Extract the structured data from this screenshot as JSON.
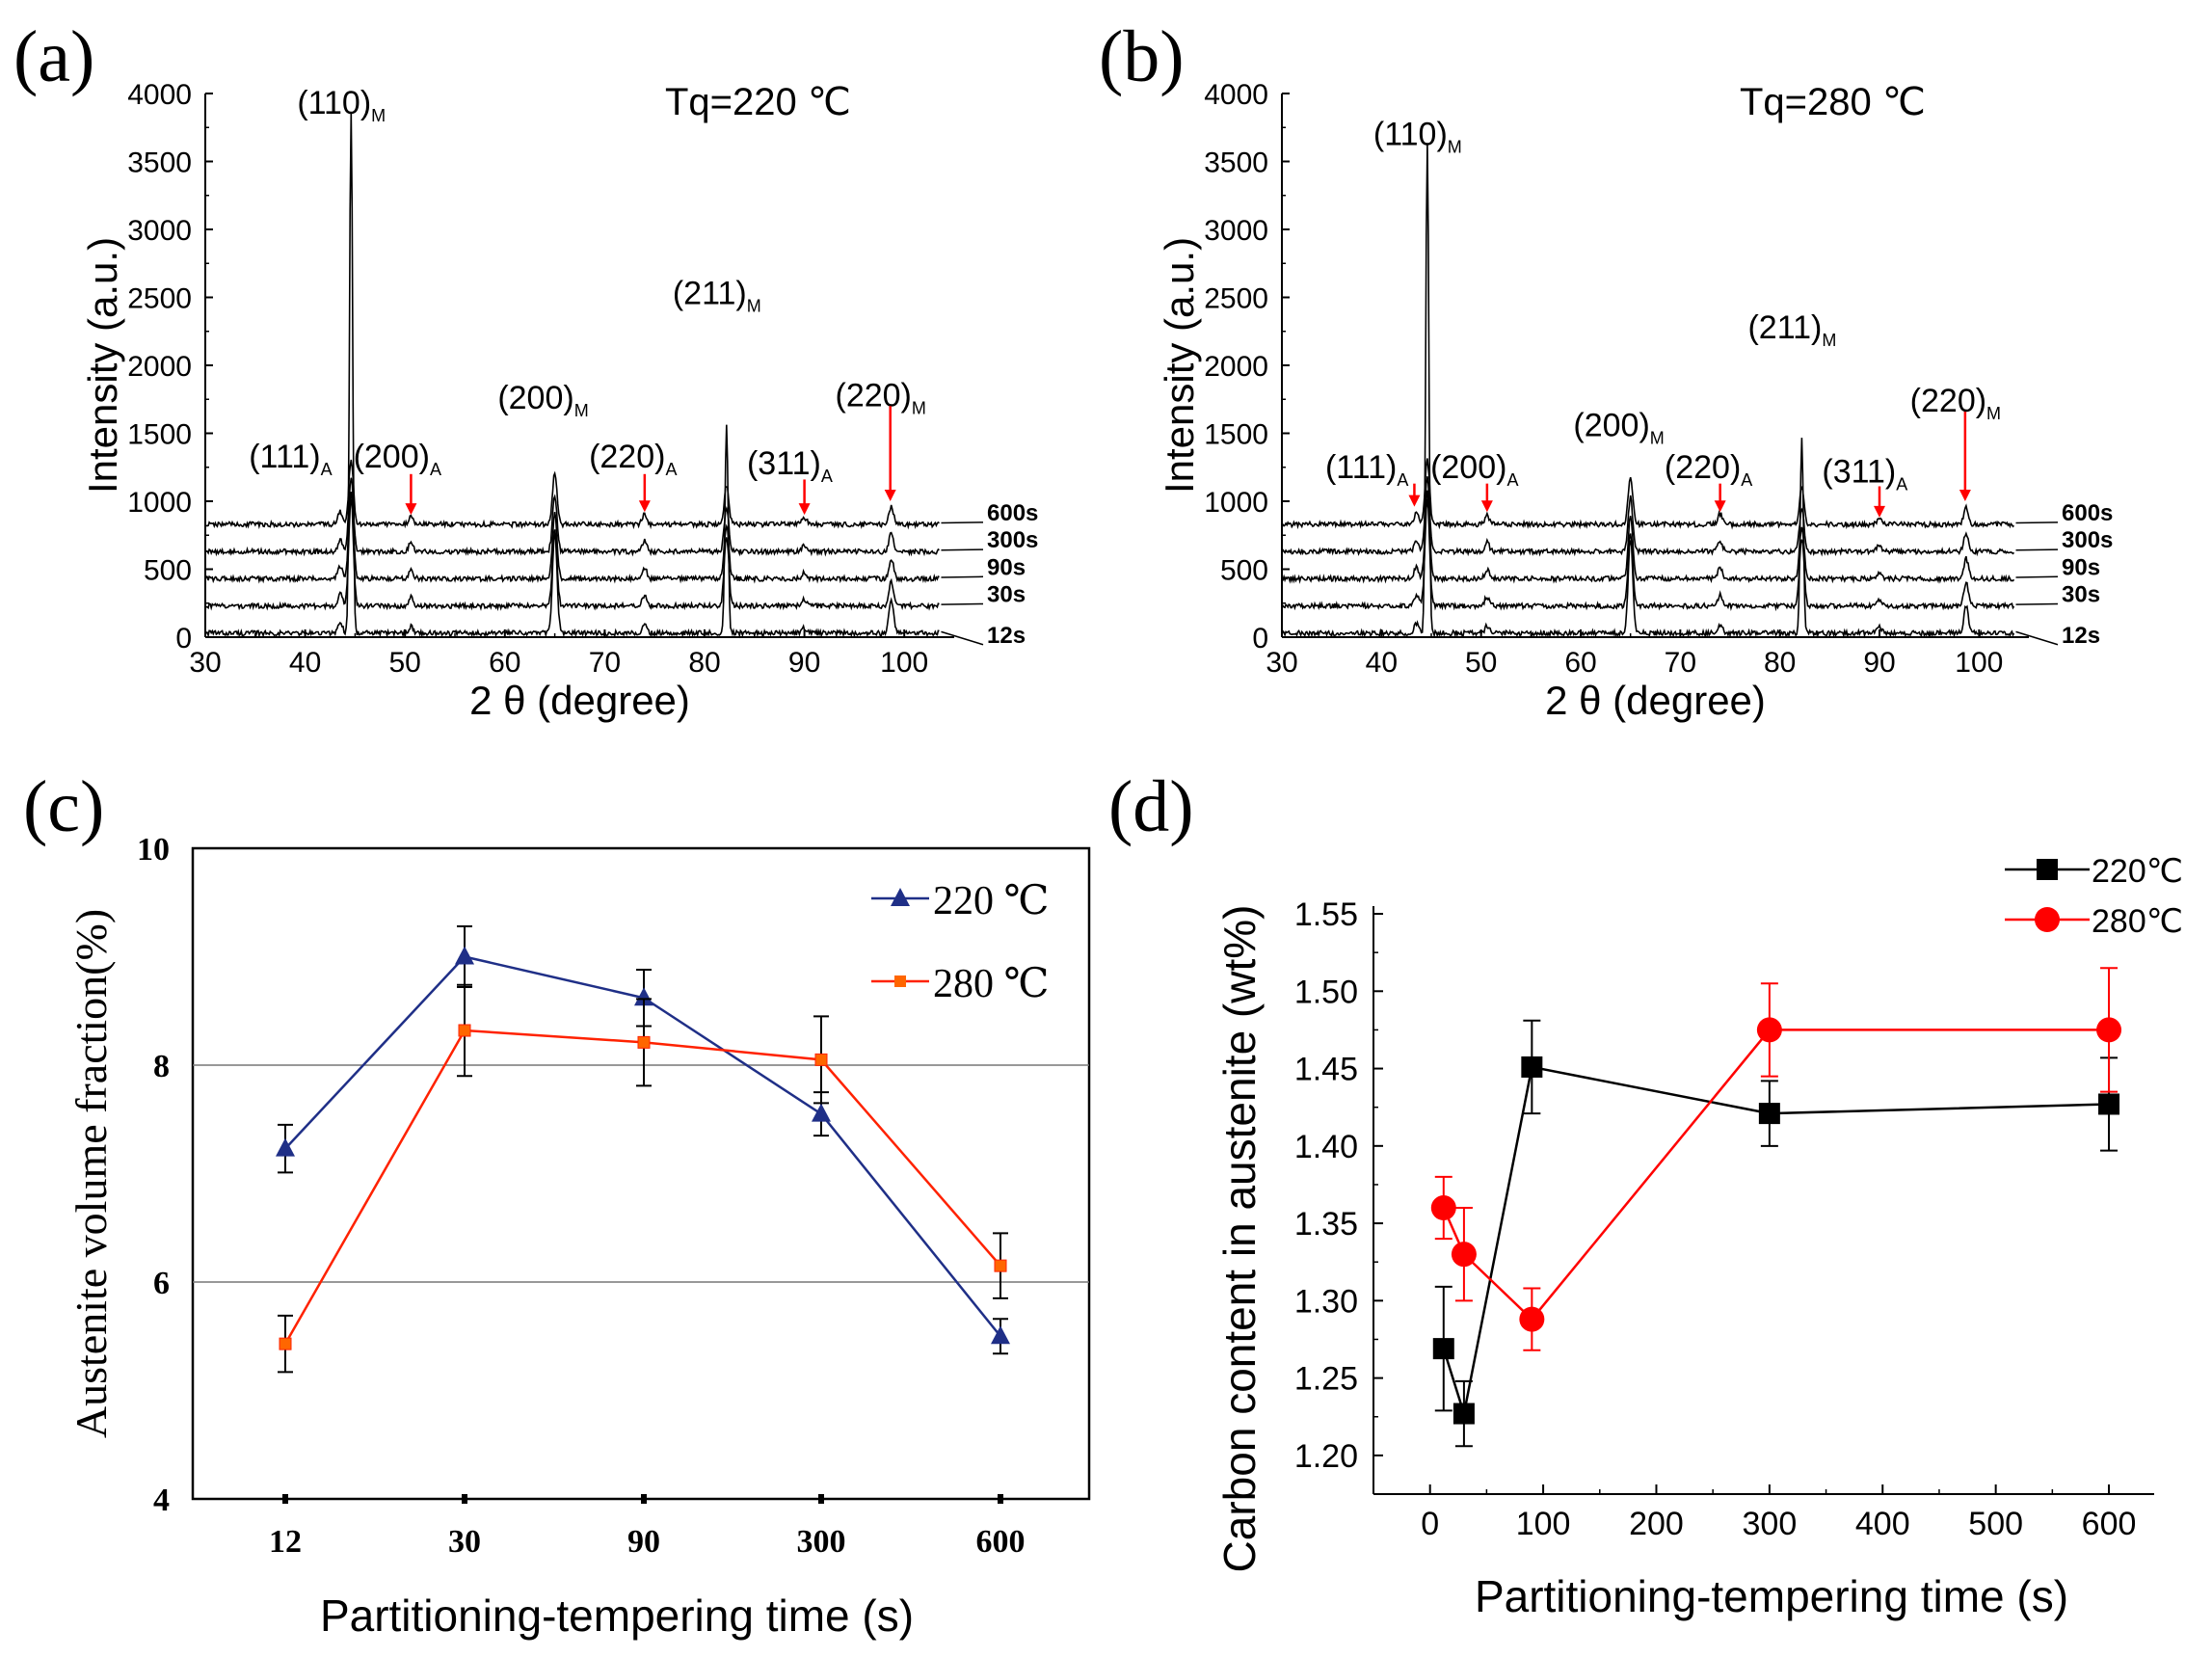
{
  "colors": {
    "black": "#000000",
    "red": "#ff0000",
    "navy": "#1f2f87",
    "orange_line": "#ff2200",
    "orange_marker": "#ff6600",
    "grid": "#777777"
  },
  "chart_data": [
    {
      "panel": "(a)",
      "type": "line",
      "annotation": "Tq=220 ℃",
      "xlabel": "2 θ (degree)",
      "ylabel": "Intensity (a.u.)",
      "xlim": [
        30,
        105
      ],
      "ylim": [
        0,
        4000
      ],
      "xticks": [
        "30",
        "40",
        "50",
        "60",
        "70",
        "80",
        "90",
        "100"
      ],
      "yticks": [
        "0",
        "500",
        "1000",
        "1500",
        "2000",
        "2500",
        "3000",
        "3500",
        "4000"
      ],
      "series": [
        {
          "name": "12s",
          "offset": 0,
          "peaks": [
            [
              43.5,
              80
            ],
            [
              44.6,
              3850
            ],
            [
              50.6,
              50
            ],
            [
              65.0,
              760
            ],
            [
              74.0,
              60
            ],
            [
              82.2,
              1550
            ],
            [
              90.0,
              40
            ],
            [
              98.7,
              250
            ]
          ]
        },
        {
          "name": "30s",
          "offset": 200,
          "peaks": [
            [
              43.5,
              90
            ],
            [
              44.6,
              800
            ],
            [
              50.6,
              70
            ],
            [
              65.0,
              560
            ],
            [
              74.0,
              80
            ],
            [
              82.2,
              520
            ],
            [
              90.0,
              50
            ],
            [
              98.7,
              180
            ]
          ]
        },
        {
          "name": "90s",
          "offset": 400,
          "peaks": [
            [
              43.5,
              90
            ],
            [
              44.6,
              650
            ],
            [
              50.6,
              70
            ],
            [
              65.0,
              480
            ],
            [
              74.0,
              80
            ],
            [
              82.2,
              400
            ],
            [
              90.0,
              50
            ],
            [
              98.7,
              150
            ]
          ]
        },
        {
          "name": "300s",
          "offset": 600,
          "peaks": [
            [
              43.5,
              90
            ],
            [
              44.6,
              550
            ],
            [
              50.6,
              70
            ],
            [
              65.0,
              420
            ],
            [
              74.0,
              80
            ],
            [
              82.2,
              330
            ],
            [
              90.0,
              50
            ],
            [
              98.7,
              140
            ]
          ]
        },
        {
          "name": "600s",
          "offset": 800,
          "peaks": [
            [
              43.5,
              90
            ],
            [
              44.6,
              480
            ],
            [
              50.6,
              70
            ],
            [
              65.0,
              380
            ],
            [
              74.0,
              80
            ],
            [
              82.2,
              290
            ],
            [
              90.0,
              50
            ],
            [
              98.7,
              130
            ]
          ]
        }
      ],
      "peak_labels": [
        {
          "text": "(110)",
          "sub": "M",
          "x": 44.6,
          "y": 3850
        },
        {
          "text": "(111)",
          "sub": "A",
          "x": 39.5,
          "y": 1250
        },
        {
          "text": "(200)",
          "sub": "A",
          "x": 50.2,
          "y": 1250
        },
        {
          "text": "(200)",
          "sub": "M",
          "x": 64.8,
          "y": 1680
        },
        {
          "text": "(220)",
          "sub": "A",
          "x": 73.8,
          "y": 1250
        },
        {
          "text": "(211)",
          "sub": "M",
          "x": 82.2,
          "y": 2450
        },
        {
          "text": "(311)",
          "sub": "A",
          "x": 89.5,
          "y": 1200
        },
        {
          "text": "(220)",
          "sub": "M",
          "x": 98.6,
          "y": 1700
        }
      ],
      "arrows": [
        [
          50.6,
          1200,
          900
        ],
        [
          74.0,
          1200,
          920
        ],
        [
          90.0,
          1160,
          900
        ],
        [
          98.6,
          1700,
          1000
        ]
      ]
    },
    {
      "panel": "(b)",
      "type": "line",
      "annotation": "Tq=280 ℃",
      "xlabel": "2 θ (degree)",
      "ylabel": "Intensity (a.u.)",
      "xlim": [
        30,
        105
      ],
      "ylim": [
        0,
        4000
      ],
      "xticks": [
        "30",
        "40",
        "50",
        "60",
        "70",
        "80",
        "90",
        "100"
      ],
      "yticks": [
        "0",
        "500",
        "1000",
        "1500",
        "2000",
        "2500",
        "3000",
        "3500",
        "4000"
      ],
      "series": [
        {
          "name": "12s",
          "offset": 0,
          "peaks": [
            [
              43.5,
              70
            ],
            [
              44.6,
              3600
            ],
            [
              50.6,
              50
            ],
            [
              65.0,
              700
            ],
            [
              74.0,
              60
            ],
            [
              82.2,
              1450
            ],
            [
              90.0,
              40
            ],
            [
              98.7,
              200
            ]
          ]
        },
        {
          "name": "30s",
          "offset": 200,
          "peaks": [
            [
              43.5,
              80
            ],
            [
              44.6,
              780
            ],
            [
              50.6,
              70
            ],
            [
              65.0,
              540
            ],
            [
              74.0,
              80
            ],
            [
              82.2,
              500
            ],
            [
              90.0,
              50
            ],
            [
              98.7,
              170
            ]
          ]
        },
        {
          "name": "90s",
          "offset": 400,
          "peaks": [
            [
              43.5,
              80
            ],
            [
              44.6,
              640
            ],
            [
              50.6,
              70
            ],
            [
              65.0,
              460
            ],
            [
              74.0,
              80
            ],
            [
              82.2,
              390
            ],
            [
              90.0,
              50
            ],
            [
              98.7,
              150
            ]
          ]
        },
        {
          "name": "300s",
          "offset": 600,
          "peaks": [
            [
              43.5,
              80
            ],
            [
              44.6,
              540
            ],
            [
              50.6,
              70
            ],
            [
              65.0,
              400
            ],
            [
              74.0,
              80
            ],
            [
              82.2,
              320
            ],
            [
              90.0,
              50
            ],
            [
              98.7,
              140
            ]
          ]
        },
        {
          "name": "600s",
          "offset": 800,
          "peaks": [
            [
              43.5,
              80
            ],
            [
              44.6,
              470
            ],
            [
              50.6,
              70
            ],
            [
              65.0,
              360
            ],
            [
              74.0,
              80
            ],
            [
              82.2,
              280
            ],
            [
              90.0,
              50
            ],
            [
              98.7,
              130
            ]
          ]
        }
      ],
      "peak_labels": [
        {
          "text": "(110)",
          "sub": "M",
          "x": 44.6,
          "y": 3620
        },
        {
          "text": "(111)",
          "sub": "A",
          "x": 39.5,
          "y": 1170
        },
        {
          "text": "(200)",
          "sub": "A",
          "x": 50.3,
          "y": 1170
        },
        {
          "text": "(200)",
          "sub": "M",
          "x": 64.8,
          "y": 1480
        },
        {
          "text": "(220)",
          "sub": "A",
          "x": 73.8,
          "y": 1170
        },
        {
          "text": "(211)",
          "sub": "M",
          "x": 82.2,
          "y": 2200
        },
        {
          "text": "(311)",
          "sub": "A",
          "x": 89.5,
          "y": 1140
        },
        {
          "text": "(220)",
          "sub": "M",
          "x": 98.6,
          "y": 1660
        }
      ],
      "arrows": [
        [
          43.3,
          1130,
          960
        ],
        [
          50.6,
          1130,
          920
        ],
        [
          74.0,
          1130,
          920
        ],
        [
          90.0,
          1110,
          880
        ],
        [
          98.6,
          1660,
          1000
        ]
      ]
    },
    {
      "panel": "(c)",
      "type": "line",
      "xlabel": "Partitioning-tempering time (s)",
      "ylabel": "Austenite volume fraction(%)",
      "categories": [
        "12",
        "30",
        "90",
        "300",
        "600"
      ],
      "ylim": [
        4,
        10
      ],
      "yticks": [
        "4",
        "6",
        "8",
        "10"
      ],
      "gridlines": [
        6,
        8
      ],
      "series": [
        {
          "name": "220 ℃",
          "values": [
            7.23,
            9.0,
            8.62,
            7.55,
            5.5
          ],
          "errors": [
            0.22,
            0.28,
            0.26,
            0.2,
            0.16
          ],
          "marker": "triangle",
          "color": "#1f2f87"
        },
        {
          "name": "280 ℃",
          "values": [
            5.43,
            8.32,
            8.21,
            8.05,
            6.15
          ],
          "errors": [
            0.26,
            0.42,
            0.4,
            0.4,
            0.3
          ],
          "marker": "square",
          "color": "#ff2200",
          "marker_color": "#ff6600"
        }
      ],
      "legend": "top-right"
    },
    {
      "panel": "(d)",
      "type": "line",
      "xlabel": "Partitioning-tempering time (s)",
      "ylabel": "Carbon content in austenite (wt%)",
      "xlim": [
        -50,
        640
      ],
      "ylim": [
        1.175,
        1.555
      ],
      "xticks": [
        "0",
        "100",
        "200",
        "300",
        "400",
        "500",
        "600"
      ],
      "yticks": [
        "1.20",
        "1.25",
        "1.30",
        "1.35",
        "1.40",
        "1.45",
        "1.50",
        "1.55"
      ],
      "series": [
        {
          "name": "220℃",
          "x": [
            12,
            30,
            90,
            300,
            600
          ],
          "values": [
            1.269,
            1.227,
            1.451,
            1.421,
            1.427
          ],
          "errors": [
            0.04,
            0.021,
            0.03,
            0.021,
            0.03
          ],
          "marker": "square",
          "color": "#000000"
        },
        {
          "name": "280℃",
          "x": [
            12,
            30,
            90,
            300,
            600
          ],
          "values": [
            1.36,
            1.33,
            1.288,
            1.475,
            1.475
          ],
          "errors": [
            0.02,
            0.03,
            0.02,
            0.03,
            0.04
          ],
          "marker": "circle",
          "color": "#ff0000"
        }
      ],
      "legend": "top-right"
    }
  ]
}
